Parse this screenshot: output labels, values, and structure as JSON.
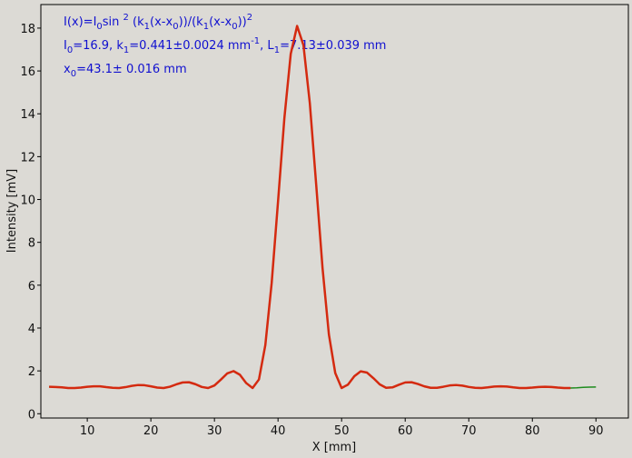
{
  "chart_data": {
    "type": "line",
    "xlabel": "X [mm]",
    "ylabel": "Intensity [mV]",
    "annotations": [
      [
        "I(x)=I",
        "0",
        "sin ",
        "2",
        " (k",
        "1",
        "(x-x",
        "0",
        "))/(k",
        "1",
        "(x-x",
        "0",
        "))",
        "2"
      ],
      [
        "I",
        "0",
        "=16.9,  k",
        "1",
        "=0.441±0.0024 mm",
        "-1",
        ",   L",
        "1",
        "=7.13±0.039 mm"
      ],
      [
        "x",
        "0",
        "=43.1±   0.016 mm"
      ]
    ],
    "x": [
      4,
      5,
      6,
      7,
      8,
      9,
      10,
      11,
      12,
      13,
      14,
      15,
      16,
      17,
      18,
      19,
      20,
      21,
      22,
      23,
      24,
      25,
      26,
      27,
      28,
      29,
      30,
      31,
      32,
      33,
      34,
      35,
      36,
      37,
      38,
      39,
      40,
      41,
      42,
      43,
      44,
      45,
      46,
      47,
      48,
      49,
      50,
      51,
      52,
      53,
      54,
      55,
      56,
      57,
      58,
      59,
      60,
      61,
      62,
      63,
      64,
      65,
      66,
      67,
      68,
      69,
      70,
      71,
      72,
      73,
      74,
      75,
      76,
      77,
      78,
      79,
      80,
      81,
      82,
      83,
      84,
      85,
      86,
      87,
      88,
      89,
      90
    ],
    "series": [
      {
        "color": "#1e8c1e",
        "values": [
          1.26,
          1.25,
          1.23,
          1.2,
          1.2,
          1.22,
          1.26,
          1.28,
          1.28,
          1.24,
          1.21,
          1.2,
          1.24,
          1.3,
          1.34,
          1.33,
          1.28,
          1.22,
          1.2,
          1.26,
          1.37,
          1.46,
          1.47,
          1.38,
          1.25,
          1.2,
          1.32,
          1.59,
          1.88,
          1.99,
          1.82,
          1.43,
          1.2,
          1.6,
          3.2,
          6.1,
          9.9,
          13.8,
          16.8,
          18.1,
          17.2,
          14.5,
          10.7,
          6.8,
          3.7,
          1.9,
          1.2,
          1.36,
          1.75,
          1.98,
          1.92,
          1.66,
          1.37,
          1.21,
          1.23,
          1.35,
          1.46,
          1.47,
          1.39,
          1.28,
          1.21,
          1.21,
          1.26,
          1.32,
          1.34,
          1.31,
          1.25,
          1.21,
          1.2,
          1.23,
          1.27,
          1.28,
          1.27,
          1.23,
          1.2,
          1.2,
          1.22,
          1.25,
          1.26,
          1.25,
          1.22,
          1.2,
          1.2,
          1.21,
          1.23,
          1.24,
          1.25
        ]
      },
      {
        "color": "#d42a10",
        "values": [
          1.26,
          1.25,
          1.23,
          1.2,
          1.2,
          1.22,
          1.26,
          1.28,
          1.28,
          1.24,
          1.21,
          1.2,
          1.24,
          1.3,
          1.34,
          1.33,
          1.28,
          1.22,
          1.2,
          1.26,
          1.37,
          1.46,
          1.47,
          1.38,
          1.25,
          1.2,
          1.32,
          1.59,
          1.88,
          1.99,
          1.82,
          1.43,
          1.2,
          1.6,
          3.2,
          6.1,
          9.9,
          13.8,
          16.8,
          18.1,
          17.2,
          14.5,
          10.7,
          6.8,
          3.7,
          1.9,
          1.2,
          1.36,
          1.75,
          1.98,
          1.92,
          1.66,
          1.37,
          1.21,
          1.23,
          1.35,
          1.46,
          1.47,
          1.39,
          1.28,
          1.21,
          1.21,
          1.26,
          1.32,
          1.34,
          1.31,
          1.25,
          1.21,
          1.2,
          1.23,
          1.27,
          1.28,
          1.27,
          1.23,
          1.2,
          1.2,
          1.22,
          1.25,
          1.26,
          1.25,
          1.22,
          1.2,
          1.2,
          null,
          null,
          null,
          null
        ]
      }
    ],
    "xlim": [
      2.7,
      95.1
    ],
    "xticks": [
      10,
      20,
      30,
      40,
      50,
      60,
      70,
      80,
      90
    ],
    "ylim": [
      -0.2,
      19.1
    ],
    "yticks": [
      0,
      2,
      4,
      6,
      8,
      10,
      12,
      14,
      16,
      18
    ]
  }
}
